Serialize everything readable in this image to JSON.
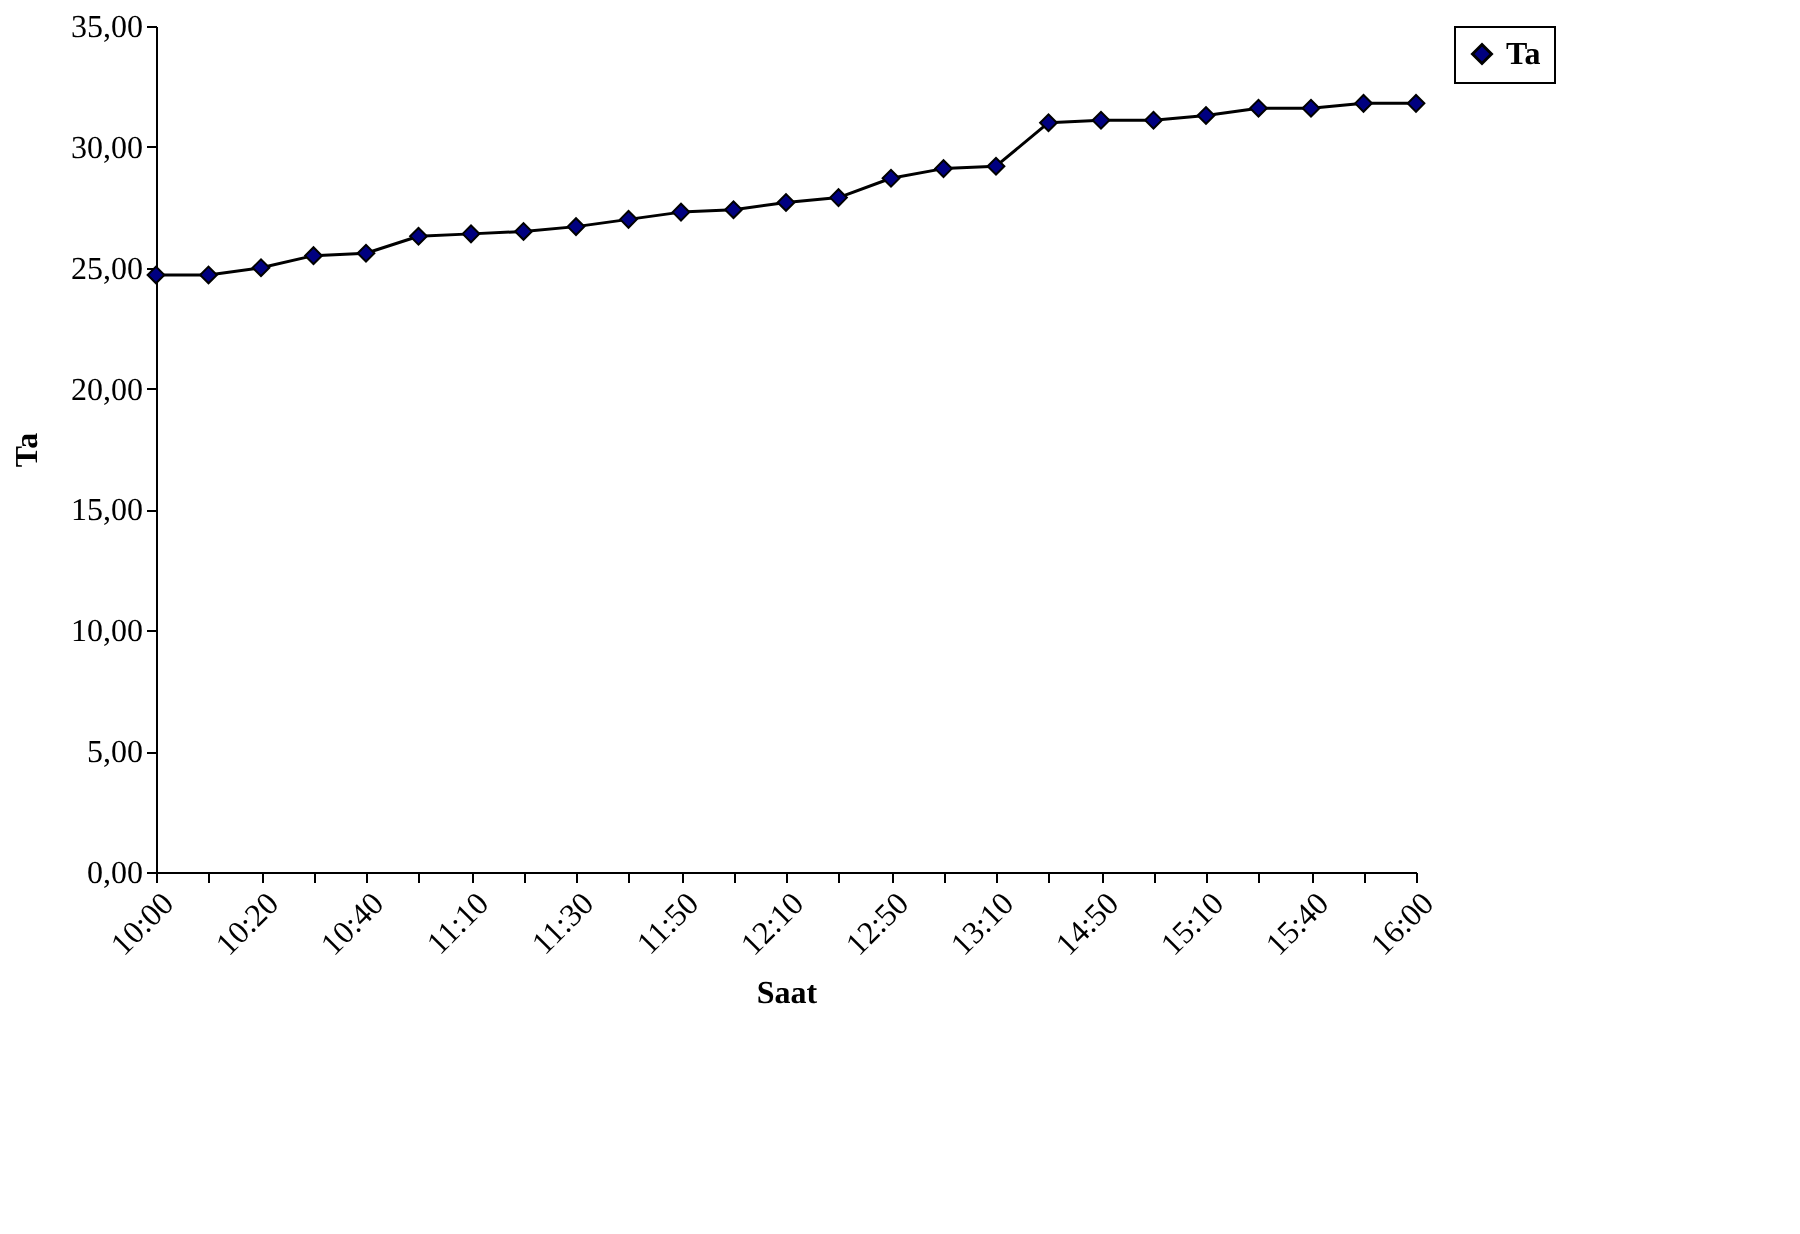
{
  "chart_data": {
    "type": "line",
    "xlabel": "Saat",
    "ylabel": "Ta",
    "categories": [
      "10:00",
      null,
      "10:20",
      null,
      "10:40",
      null,
      "11:10",
      null,
      "11:30",
      null,
      "11:50",
      null,
      "12:10",
      null,
      "12:50",
      null,
      "13:10",
      null,
      "14:50",
      null,
      "15:10",
      null,
      "15:40",
      null,
      "16:00"
    ],
    "series": [
      {
        "name": "Ta",
        "color": "#000080",
        "values": [
          24.7,
          24.7,
          25.0,
          25.5,
          25.6,
          26.3,
          26.4,
          26.5,
          26.7,
          27.0,
          27.3,
          27.4,
          27.7,
          27.9,
          28.7,
          29.1,
          29.2,
          31.0,
          31.1,
          31.1,
          31.3,
          31.6,
          31.6,
          31.8,
          31.8
        ]
      }
    ],
    "ylim": [
      0,
      35
    ],
    "yticks": [
      {
        "value": 0,
        "label": "0,00"
      },
      {
        "value": 5,
        "label": "5,00"
      },
      {
        "value": 10,
        "label": "10,00"
      },
      {
        "value": 15,
        "label": "15,00"
      },
      {
        "value": 20,
        "label": "20,00"
      },
      {
        "value": 25,
        "label": "25,00"
      },
      {
        "value": 30,
        "label": "30,00"
      },
      {
        "value": 35,
        "label": "35,00"
      }
    ],
    "marker": "diamond",
    "line_style": "solid",
    "legend": "right",
    "grid": false
  }
}
